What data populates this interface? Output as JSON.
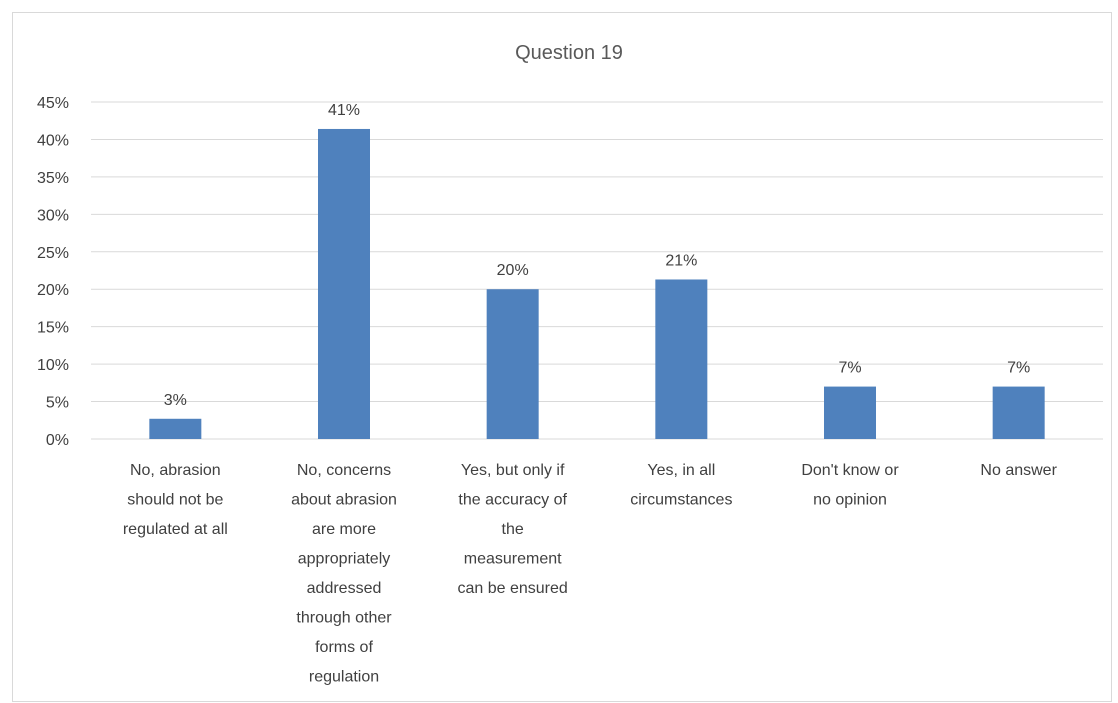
{
  "chart_data": {
    "type": "bar",
    "title": "Question 19",
    "xlabel": "",
    "ylabel": "",
    "categories": [
      "No, abrasion should not be regulated at all",
      "No, concerns about abrasion are more appropriately addressed through other forms of regulation",
      "Yes, but only if the accuracy of the measurement can be ensured",
      "Yes, in all circumstances",
      "Don't know or no opinion",
      "No answer"
    ],
    "category_lines": [
      [
        "No, abrasion",
        "should not be",
        "regulated at all"
      ],
      [
        "No, concerns",
        "about abrasion",
        "are more",
        "appropriately",
        "addressed",
        "through other",
        "forms of",
        "regulation"
      ],
      [
        "Yes, but only if",
        "the accuracy of",
        "the",
        "measurement",
        "can be ensured"
      ],
      [
        "Yes, in all",
        "circumstances"
      ],
      [
        "Don't know or",
        "no opinion"
      ],
      [
        "No answer"
      ]
    ],
    "values": [
      0.027,
      0.414,
      0.2,
      0.213,
      0.07,
      0.07
    ],
    "data_labels": [
      "3%",
      "41%",
      "20%",
      "21%",
      "7%",
      "7%"
    ],
    "ylim": [
      0,
      0.45
    ],
    "ytick_values": [
      0,
      0.05,
      0.1,
      0.15,
      0.2,
      0.25,
      0.3,
      0.35,
      0.4,
      0.45
    ],
    "ytick_labels": [
      "0%",
      "5%",
      "10%",
      "15%",
      "20%",
      "25%",
      "30%",
      "35%",
      "40%",
      "45%"
    ],
    "grid": true,
    "legend": "none",
    "bar_color": "#4f81bd"
  }
}
